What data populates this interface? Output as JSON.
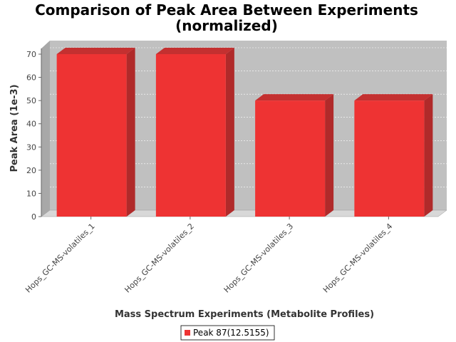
{
  "chart_data": {
    "type": "bar",
    "title_lines": [
      "Comparison of Peak Area Between Experiments",
      "(normalized)"
    ],
    "xlabel": "Mass Spectrum Experiments (Metabolite Profiles)",
    "ylabel": "Peak Area (1e-3)",
    "categories": [
      "Hops_GC-MS-volatiles_1",
      "Hops_GC-MS-volatiles_2",
      "Hops_GC-MS-volatiles_3",
      "Hops_GC-MS-volatiles_4"
    ],
    "series": [
      {
        "name": "Peak 87(12.5155)",
        "values": [
          70,
          70,
          50,
          50
        ],
        "color": "#ee3333"
      }
    ],
    "ylim": [
      0,
      70
    ],
    "yticks": [
      0,
      10,
      20,
      30,
      40,
      50,
      60,
      70
    ],
    "grid": true,
    "legend_position": "bottom",
    "plot_background": "#c0c0c0"
  }
}
